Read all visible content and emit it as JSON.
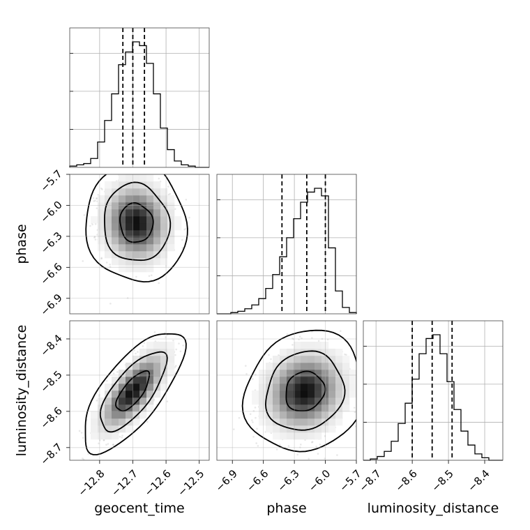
{
  "chart_data": {
    "type": "corner",
    "parameters": [
      {
        "name": "geocent_time",
        "label": "geocent_time",
        "range": [
          -12.89,
          -12.47
        ],
        "ticks": [
          -12.8,
          -12.7,
          -12.6,
          -12.5
        ],
        "tick_labels": [
          "−12.8",
          "−12.7",
          "−12.6",
          "−12.5"
        ],
        "quantiles": [
          -12.73,
          -12.7,
          -12.665
        ],
        "hist_bins": [
          0.01,
          0.02,
          0.03,
          0.07,
          0.2,
          0.37,
          0.58,
          0.81,
          0.91,
          0.99,
          0.96,
          0.82,
          0.58,
          0.31,
          0.14,
          0.05,
          0.02,
          0.01,
          0.0,
          0.0
        ],
        "hist_yticks": [
          0.3,
          0.6,
          0.9
        ]
      },
      {
        "name": "phase",
        "label": "phase",
        "range": [
          -7.05,
          -5.7
        ],
        "ticks": [
          -6.9,
          -6.6,
          -6.3,
          -6.0,
          -5.7
        ],
        "tick_labels": [
          "−6.9",
          "−6.6",
          "−6.3",
          "−6.0",
          "−5.7"
        ],
        "quantiles": [
          -6.42,
          -6.18,
          -6.0
        ],
        "hist_bins": [
          0.0,
          0.0,
          0.01,
          0.02,
          0.04,
          0.07,
          0.12,
          0.2,
          0.31,
          0.45,
          0.6,
          0.75,
          0.88,
          0.96,
          0.99,
          0.93,
          0.52,
          0.18,
          0.05,
          0.01
        ],
        "hist_yticks": [
          0.3,
          0.6,
          0.9
        ]
      },
      {
        "name": "luminosity_distance",
        "label": "luminosity_distance",
        "range": [
          -8.735,
          -8.35
        ],
        "ticks": [
          -8.7,
          -8.6,
          -8.5,
          -8.4
        ],
        "tick_labels": [
          "−8.7",
          "−8.6",
          "−8.5",
          "−8.4"
        ],
        "quantiles": [
          -8.6,
          -8.545,
          -8.49
        ],
        "hist_bins": [
          0.0,
          0.01,
          0.03,
          0.07,
          0.15,
          0.29,
          0.45,
          0.64,
          0.84,
          0.96,
          0.99,
          0.84,
          0.62,
          0.4,
          0.23,
          0.12,
          0.05,
          0.02,
          0.0,
          0.0
        ],
        "hist_yticks": [
          0.3,
          0.6,
          0.9
        ]
      }
    ],
    "pairs": [
      {
        "x": "geocent_time",
        "y": "phase",
        "mean": [
          -12.69,
          -6.17
        ],
        "std": [
          0.05,
          0.19
        ],
        "corr": -0.05,
        "density_grid": [
          [
            0,
            0,
            0,
            0,
            0,
            0,
            0,
            0,
            0,
            0,
            0,
            0,
            0,
            0,
            0,
            0,
            0,
            0,
            0,
            0
          ],
          [
            0,
            0,
            0,
            0,
            0,
            0,
            0,
            0,
            0,
            0,
            0,
            0,
            0,
            0,
            0,
            0,
            0,
            0,
            0,
            0
          ],
          [
            0,
            0,
            0,
            0,
            0,
            0,
            0,
            0.01,
            0.01,
            0.01,
            0.01,
            0.01,
            0,
            0,
            0,
            0,
            0,
            0,
            0,
            0
          ],
          [
            0,
            0,
            0,
            0,
            0,
            0,
            0.01,
            0.03,
            0.05,
            0.06,
            0.06,
            0.04,
            0.02,
            0.01,
            0,
            0,
            0,
            0,
            0,
            0
          ],
          [
            0,
            0,
            0,
            0,
            0,
            0.01,
            0.04,
            0.12,
            0.2,
            0.25,
            0.24,
            0.17,
            0.08,
            0.03,
            0.01,
            0,
            0,
            0,
            0,
            0
          ],
          [
            0,
            0,
            0,
            0,
            0,
            0.02,
            0.09,
            0.26,
            0.47,
            0.58,
            0.54,
            0.36,
            0.16,
            0.05,
            0.01,
            0,
            0,
            0,
            0,
            0
          ],
          [
            0,
            0,
            0,
            0,
            0,
            0.03,
            0.14,
            0.41,
            0.73,
            0.91,
            0.84,
            0.55,
            0.25,
            0.07,
            0.01,
            0,
            0,
            0,
            0,
            0
          ],
          [
            0,
            0,
            0,
            0,
            0,
            0.03,
            0.15,
            0.45,
            0.82,
            1.0,
            0.92,
            0.6,
            0.26,
            0.08,
            0.01,
            0,
            0,
            0,
            0,
            0
          ],
          [
            0,
            0,
            0,
            0,
            0,
            0.02,
            0.12,
            0.37,
            0.66,
            0.81,
            0.74,
            0.48,
            0.21,
            0.06,
            0.01,
            0,
            0,
            0,
            0,
            0
          ],
          [
            0,
            0,
            0,
            0,
            0,
            0.01,
            0.07,
            0.21,
            0.38,
            0.46,
            0.42,
            0.27,
            0.12,
            0.04,
            0.01,
            0,
            0,
            0,
            0,
            0
          ],
          [
            0,
            0,
            0,
            0,
            0,
            0.01,
            0.03,
            0.08,
            0.15,
            0.18,
            0.16,
            0.1,
            0.05,
            0.02,
            0,
            0,
            0,
            0,
            0,
            0
          ],
          [
            0,
            0,
            0,
            0,
            0,
            0,
            0.01,
            0.02,
            0.04,
            0.05,
            0.04,
            0.03,
            0.01,
            0,
            0,
            0,
            0,
            0,
            0,
            0
          ],
          [
            0,
            0,
            0,
            0,
            0,
            0,
            0,
            0,
            0.01,
            0.01,
            0.01,
            0,
            0,
            0,
            0,
            0,
            0,
            0,
            0,
            0
          ],
          [
            0,
            0,
            0,
            0,
            0,
            0,
            0,
            0,
            0,
            0,
            0,
            0,
            0,
            0,
            0,
            0,
            0,
            0,
            0,
            0
          ],
          [
            0,
            0,
            0,
            0,
            0,
            0,
            0,
            0,
            0,
            0,
            0,
            0,
            0,
            0,
            0,
            0,
            0,
            0,
            0,
            0
          ],
          [
            0,
            0,
            0,
            0,
            0,
            0,
            0,
            0,
            0,
            0,
            0,
            0,
            0,
            0,
            0,
            0,
            0,
            0,
            0,
            0
          ],
          [
            0,
            0,
            0,
            0,
            0,
            0,
            0,
            0,
            0,
            0,
            0,
            0,
            0,
            0,
            0,
            0,
            0,
            0,
            0,
            0
          ],
          [
            0,
            0,
            0,
            0,
            0,
            0,
            0,
            0,
            0,
            0,
            0,
            0,
            0,
            0,
            0,
            0,
            0,
            0,
            0,
            0
          ],
          [
            0,
            0,
            0,
            0,
            0,
            0,
            0,
            0,
            0,
            0,
            0,
            0,
            0,
            0,
            0,
            0,
            0,
            0,
            0,
            0
          ],
          [
            0,
            0,
            0,
            0,
            0,
            0,
            0,
            0,
            0,
            0,
            0,
            0,
            0,
            0,
            0,
            0,
            0,
            0,
            0,
            0
          ]
        ]
      },
      {
        "x": "geocent_time",
        "y": "luminosity_distance",
        "mean": [
          -12.7,
          -8.545
        ],
        "std": [
          0.05,
          0.055
        ],
        "corr": 0.72
      },
      {
        "x": "phase",
        "y": "luminosity_distance",
        "mean": [
          -6.2,
          -8.545
        ],
        "std": [
          0.19,
          0.055
        ],
        "corr": 0.12
      }
    ],
    "contour_levels": [
      0.39,
      0.86,
      0.99
    ],
    "grid": true,
    "legend": "none"
  }
}
